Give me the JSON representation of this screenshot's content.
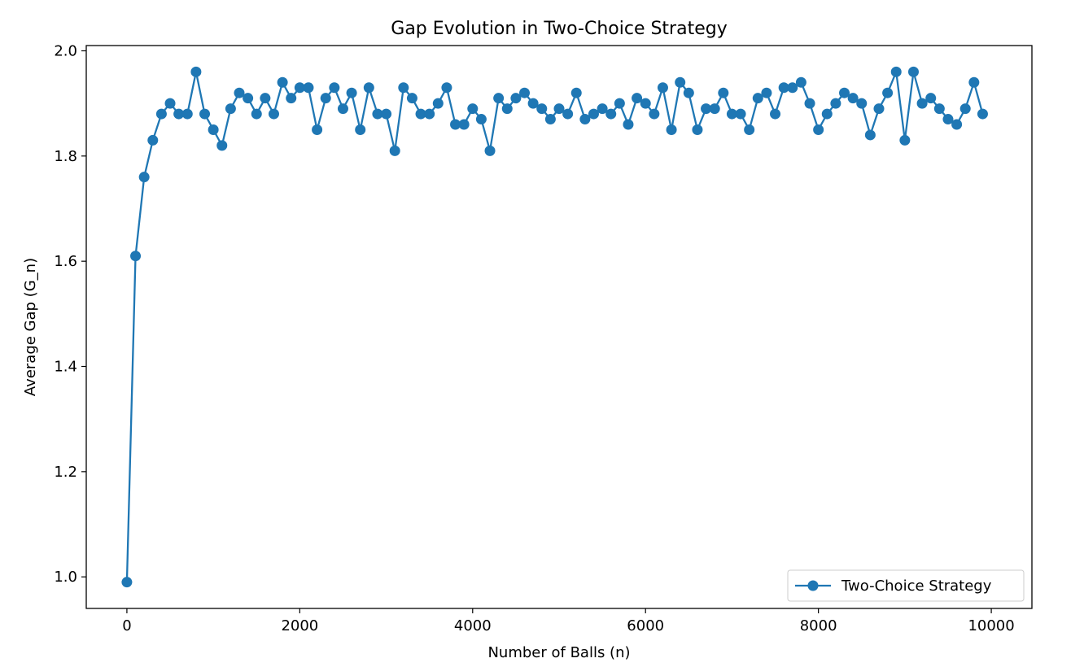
{
  "chart_data": {
    "type": "line",
    "title": "Gap Evolution in Two-Choice Strategy",
    "xlabel": "Number of Balls (n)",
    "ylabel": "Average Gap (G_n)",
    "xlim": [
      -470,
      10470
    ],
    "ylim": [
      0.94,
      2.01
    ],
    "xticks": [
      0,
      2000,
      4000,
      6000,
      8000,
      10000
    ],
    "xtick_labels": [
      "0",
      "2000",
      "4000",
      "6000",
      "8000",
      "10000"
    ],
    "yticks": [
      1.0,
      1.2,
      1.4,
      1.6,
      1.8,
      2.0
    ],
    "ytick_labels": [
      "1.0",
      "1.2",
      "1.4",
      "1.6",
      "1.8",
      "2.0"
    ],
    "grid": false,
    "legend_position": "lower-right",
    "colors": {
      "series": "#1f77b4"
    },
    "series": [
      {
        "name": "Two-Choice Strategy",
        "marker": "circle",
        "x": [
          0,
          100,
          200,
          300,
          400,
          500,
          600,
          700,
          800,
          900,
          1000,
          1100,
          1200,
          1300,
          1400,
          1500,
          1600,
          1700,
          1800,
          1900,
          2000,
          2100,
          2200,
          2300,
          2400,
          2500,
          2600,
          2700,
          2800,
          2900,
          3000,
          3100,
          3200,
          3300,
          3400,
          3500,
          3600,
          3700,
          3800,
          3900,
          4000,
          4100,
          4200,
          4300,
          4400,
          4500,
          4600,
          4700,
          4800,
          4900,
          5000,
          5100,
          5200,
          5300,
          5400,
          5500,
          5600,
          5700,
          5800,
          5900,
          6000,
          6100,
          6200,
          6300,
          6400,
          6500,
          6600,
          6700,
          6800,
          6900,
          7000,
          7100,
          7200,
          7300,
          7400,
          7500,
          7600,
          7700,
          7800,
          7900,
          8000,
          8100,
          8200,
          8300,
          8400,
          8500,
          8600,
          8700,
          8800,
          8900,
          9000,
          9100,
          9200,
          9300,
          9400,
          9500,
          9600,
          9700,
          9800,
          9900
        ],
        "y": [
          0.99,
          1.61,
          1.76,
          1.83,
          1.88,
          1.9,
          1.88,
          1.88,
          1.96,
          1.88,
          1.85,
          1.82,
          1.89,
          1.92,
          1.91,
          1.88,
          1.91,
          1.88,
          1.94,
          1.91,
          1.93,
          1.93,
          1.85,
          1.91,
          1.93,
          1.89,
          1.92,
          1.85,
          1.93,
          1.88,
          1.88,
          1.81,
          1.93,
          1.91,
          1.88,
          1.88,
          1.9,
          1.93,
          1.86,
          1.86,
          1.89,
          1.87,
          1.81,
          1.91,
          1.89,
          1.91,
          1.92,
          1.9,
          1.89,
          1.87,
          1.89,
          1.88,
          1.92,
          1.87,
          1.88,
          1.89,
          1.88,
          1.9,
          1.86,
          1.91,
          1.9,
          1.88,
          1.93,
          1.85,
          1.94,
          1.92,
          1.85,
          1.89,
          1.89,
          1.92,
          1.88,
          1.88,
          1.85,
          1.91,
          1.92,
          1.88,
          1.93,
          1.93,
          1.94,
          1.9,
          1.85,
          1.88,
          1.9,
          1.92,
          1.91,
          1.9,
          1.84,
          1.89,
          1.92,
          1.96,
          1.83,
          1.96,
          1.9,
          1.91,
          1.89,
          1.87,
          1.86,
          1.89,
          1.94,
          1.88
        ]
      }
    ]
  }
}
